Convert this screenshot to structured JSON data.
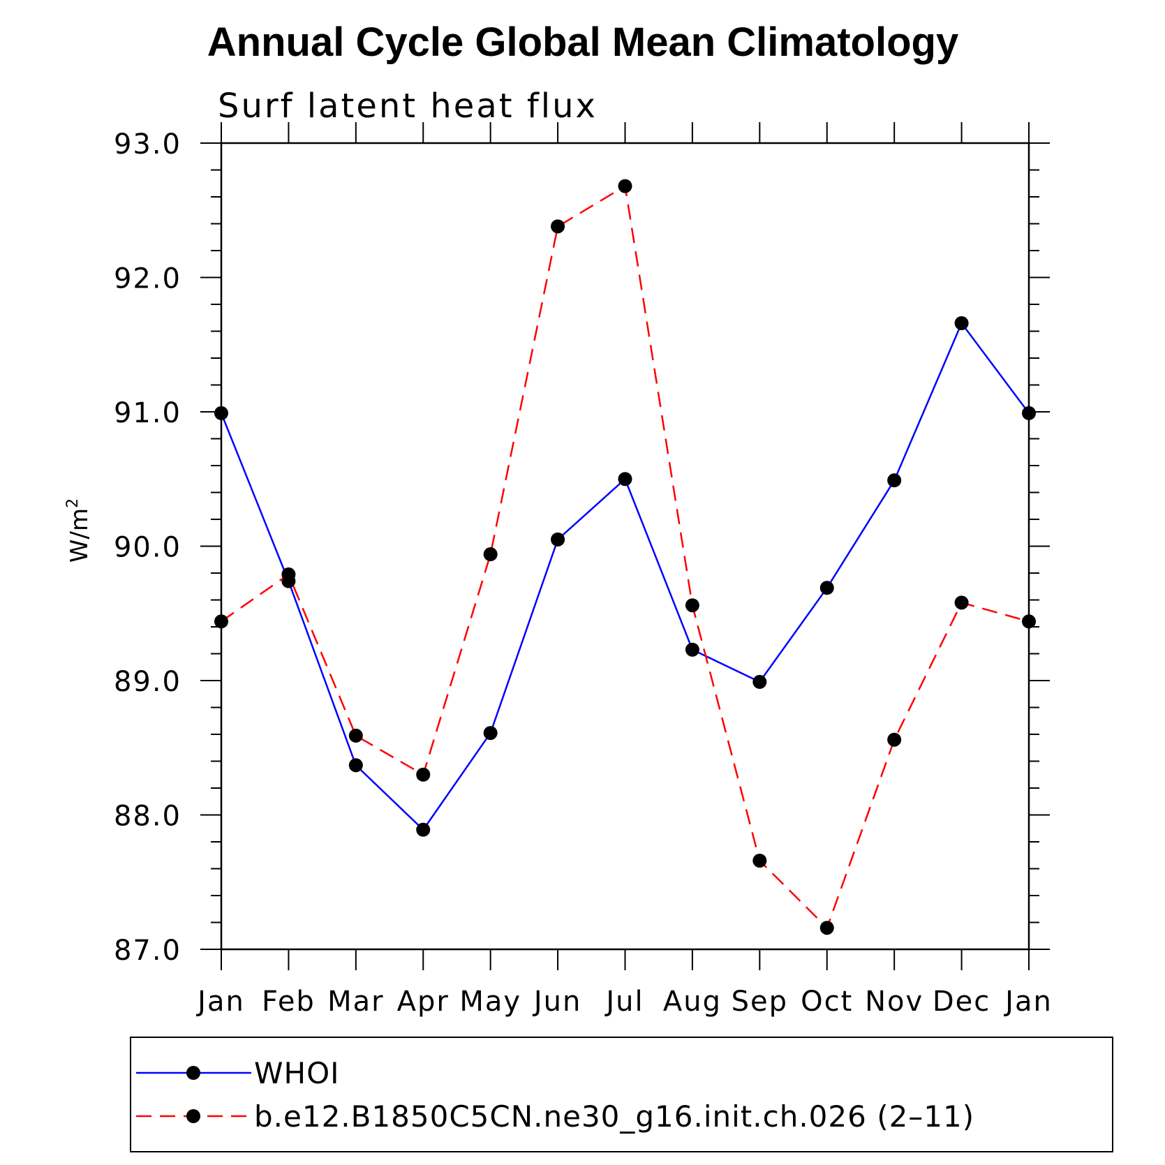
{
  "chart_data": {
    "type": "line",
    "title": "Annual Cycle Global Mean Climatology",
    "subtitle": "Surf latent heat flux",
    "ylabel": "W/m",
    "ylabel_superscript": "2",
    "xlabel": "",
    "categories": [
      "Jan",
      "Feb",
      "Mar",
      "Apr",
      "May",
      "Jun",
      "Jul",
      "Aug",
      "Sep",
      "Oct",
      "Nov",
      "Dec",
      "Jan"
    ],
    "ylim": [
      87.0,
      93.0
    ],
    "yticks": [
      "87.0",
      "88.0",
      "89.0",
      "90.0",
      "91.0",
      "92.0",
      "93.0"
    ],
    "series": [
      {
        "name": "WHOI",
        "color": "#0000ff",
        "style": "solid",
        "values": [
          90.99,
          89.74,
          88.37,
          87.89,
          88.61,
          90.05,
          90.5,
          89.23,
          88.99,
          89.69,
          90.49,
          91.66,
          90.99
        ]
      },
      {
        "name": "b.e12.B1850C5CN.ne30_g16.init.ch.026 (2–11)",
        "color": "#ff0000",
        "style": "dashed",
        "values": [
          89.44,
          89.79,
          88.59,
          88.3,
          89.94,
          92.38,
          92.68,
          89.56,
          87.66,
          87.16,
          88.56,
          89.58,
          89.44
        ]
      }
    ],
    "legend_position": "bottom"
  }
}
